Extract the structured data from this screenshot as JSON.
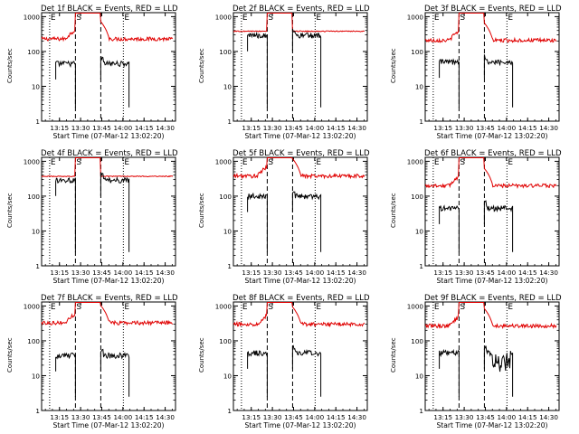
{
  "figure": {
    "title_suffix": "BLACK = Events, RED = LLD",
    "xlabel": "Start Time (07-Mar-12 13:02:20)",
    "ylabel": "Counts/sec",
    "x_tick_labels": [
      "13:15",
      "13:30",
      "13:45",
      "14:00",
      "14:15",
      "14:30"
    ],
    "y_tick_labels": [
      "1",
      "10",
      "100",
      "1000"
    ],
    "marker_labels": [
      "E",
      "S",
      "E"
    ],
    "colors": {
      "events": "#000000",
      "lld": "#e00000",
      "axes": "#000000"
    }
  },
  "chart_data": [
    {
      "type": "line",
      "title": "Det 1f BLACK = Events, RED = LLD",
      "x_unit": "minutes after 13:02:20",
      "ylog": true,
      "ylim": [
        1,
        1300
      ],
      "xlim": [
        0,
        95
      ],
      "xlabel": "Start Time (07-Mar-12 13:02:20)",
      "ylabel": "Counts/sec",
      "markers": [
        {
          "x": 5.7,
          "label": "E",
          "style": "dotted"
        },
        {
          "x": 24,
          "label": "S",
          "style": "dashed"
        },
        {
          "x": 42,
          "label": "",
          "style": "dashed"
        },
        {
          "x": 58,
          "label": "E",
          "style": "dotted"
        }
      ],
      "lld_base": 230,
      "event_base": 45,
      "event_bursts": [],
      "series": [
        {
          "name": "Events",
          "color": "#000000",
          "segments": [
            [
              10,
              24
            ],
            [
              42,
              62
            ]
          ]
        },
        {
          "name": "LLD",
          "color": "#e00000",
          "segments": [
            [
              0,
              93
            ]
          ]
        }
      ]
    },
    {
      "type": "line",
      "title": "Det 2f BLACK = Events, RED = LLD",
      "x_unit": "minutes after 13:02:20",
      "ylog": true,
      "ylim": [
        1,
        1300
      ],
      "xlim": [
        0,
        95
      ],
      "xlabel": "Start Time (07-Mar-12 13:02:20)",
      "ylabel": "Counts/sec",
      "markers": [
        {
          "x": 5.7,
          "label": "E",
          "style": "dotted"
        },
        {
          "x": 24,
          "label": "S",
          "style": "dashed"
        },
        {
          "x": 42,
          "label": "",
          "style": "dashed"
        },
        {
          "x": 58,
          "label": "E",
          "style": "dotted"
        }
      ],
      "lld_base": 380,
      "event_base": 290,
      "event_bursts": [],
      "series": [
        {
          "name": "Events",
          "color": "#000000",
          "segments": [
            [
              10,
              24
            ],
            [
              42,
              62
            ]
          ]
        },
        {
          "name": "LLD",
          "color": "#e00000",
          "segments": [
            [
              0,
              93
            ]
          ]
        }
      ]
    },
    {
      "type": "line",
      "title": "Det 3f BLACK = Events, RED = LLD",
      "x_unit": "minutes after 13:02:20",
      "ylog": true,
      "ylim": [
        1,
        1300
      ],
      "xlim": [
        0,
        95
      ],
      "xlabel": "Start Time (07-Mar-12 13:02:20)",
      "ylabel": "Counts/sec",
      "markers": [
        {
          "x": 5.7,
          "label": "E",
          "style": "dotted"
        },
        {
          "x": 24,
          "label": "S",
          "style": "dashed"
        },
        {
          "x": 42,
          "label": "",
          "style": "dashed"
        },
        {
          "x": 58,
          "label": "E",
          "style": "dotted"
        }
      ],
      "lld_base": 210,
      "event_base": 50,
      "event_bursts": [],
      "series": [
        {
          "name": "Events",
          "color": "#000000",
          "segments": [
            [
              10,
              24
            ],
            [
              42,
              62
            ]
          ]
        },
        {
          "name": "LLD",
          "color": "#e00000",
          "segments": [
            [
              0,
              93
            ]
          ]
        }
      ]
    },
    {
      "type": "line",
      "title": "Det 4f BLACK = Events, RED = LLD",
      "x_unit": "minutes after 13:02:20",
      "ylog": true,
      "ylim": [
        1,
        1300
      ],
      "xlim": [
        0,
        95
      ],
      "xlabel": "Start Time (07-Mar-12 13:02:20)",
      "ylabel": "Counts/sec",
      "markers": [
        {
          "x": 5.7,
          "label": "E",
          "style": "dotted"
        },
        {
          "x": 24,
          "label": "S",
          "style": "dashed"
        },
        {
          "x": 42,
          "label": "",
          "style": "dashed"
        },
        {
          "x": 58,
          "label": "E",
          "style": "dotted"
        }
      ],
      "lld_base": 370,
      "event_base": 290,
      "event_bursts": [],
      "series": [
        {
          "name": "Events",
          "color": "#000000",
          "segments": [
            [
              10,
              24
            ],
            [
              42,
              62
            ]
          ]
        },
        {
          "name": "LLD",
          "color": "#e00000",
          "segments": [
            [
              0,
              93
            ]
          ]
        }
      ]
    },
    {
      "type": "line",
      "title": "Det 5f BLACK = Events, RED = LLD",
      "x_unit": "minutes after 13:02:20",
      "ylog": true,
      "ylim": [
        1,
        1300
      ],
      "xlim": [
        0,
        95
      ],
      "xlabel": "Start Time (07-Mar-12 13:02:20)",
      "ylabel": "Counts/sec",
      "markers": [
        {
          "x": 5.7,
          "label": "E",
          "style": "dotted"
        },
        {
          "x": 24,
          "label": "S",
          "style": "dashed"
        },
        {
          "x": 42,
          "label": "",
          "style": "dashed"
        },
        {
          "x": 58,
          "label": "E",
          "style": "dotted"
        }
      ],
      "lld_base": 380,
      "event_base": 100,
      "event_bursts": [],
      "series": [
        {
          "name": "Events",
          "color": "#000000",
          "segments": [
            [
              10,
              24
            ],
            [
              42,
              62
            ]
          ]
        },
        {
          "name": "LLD",
          "color": "#e00000",
          "segments": [
            [
              0,
              93
            ]
          ]
        }
      ]
    },
    {
      "type": "line",
      "title": "Det 6f BLACK = Events, RED = LLD",
      "x_unit": "minutes after 13:02:20",
      "ylog": true,
      "ylim": [
        1,
        1300
      ],
      "xlim": [
        0,
        95
      ],
      "xlabel": "Start Time (07-Mar-12 13:02:20)",
      "ylabel": "Counts/sec",
      "markers": [
        {
          "x": 5.7,
          "label": "E",
          "style": "dotted"
        },
        {
          "x": 24,
          "label": "S",
          "style": "dashed"
        },
        {
          "x": 42,
          "label": "",
          "style": "dashed"
        },
        {
          "x": 58,
          "label": "E",
          "style": "dotted"
        }
      ],
      "lld_base": 200,
      "event_base": 45,
      "event_bursts": [],
      "series": [
        {
          "name": "Events",
          "color": "#000000",
          "segments": [
            [
              10,
              24
            ],
            [
              42,
              62
            ]
          ]
        },
        {
          "name": "LLD",
          "color": "#e00000",
          "segments": [
            [
              0,
              93
            ]
          ]
        }
      ]
    },
    {
      "type": "line",
      "title": "Det 7f BLACK = Events, RED = LLD",
      "x_unit": "minutes after 13:02:20",
      "ylog": true,
      "ylim": [
        1,
        1300
      ],
      "xlim": [
        0,
        95
      ],
      "xlabel": "Start Time (07-Mar-12 13:02:20)",
      "ylabel": "Counts/sec",
      "markers": [
        {
          "x": 5.7,
          "label": "E",
          "style": "dotted"
        },
        {
          "x": 24,
          "label": "S",
          "style": "dashed"
        },
        {
          "x": 42,
          "label": "",
          "style": "dashed"
        },
        {
          "x": 58,
          "label": "E",
          "style": "dotted"
        }
      ],
      "lld_base": 330,
      "event_base": 38,
      "event_bursts": [],
      "series": [
        {
          "name": "Events",
          "color": "#000000",
          "segments": [
            [
              10,
              24
            ],
            [
              42,
              62
            ]
          ]
        },
        {
          "name": "LLD",
          "color": "#e00000",
          "segments": [
            [
              0,
              93
            ]
          ]
        }
      ]
    },
    {
      "type": "line",
      "title": "Det 8f BLACK = Events, RED = LLD",
      "x_unit": "minutes after 13:02:20",
      "ylog": true,
      "ylim": [
        1,
        1300
      ],
      "xlim": [
        0,
        95
      ],
      "xlabel": "Start Time (07-Mar-12 13:02:20)",
      "ylabel": "Counts/sec",
      "markers": [
        {
          "x": 5.7,
          "label": "E",
          "style": "dotted"
        },
        {
          "x": 24,
          "label": "S",
          "style": "dashed"
        },
        {
          "x": 42,
          "label": "",
          "style": "dashed"
        },
        {
          "x": 58,
          "label": "E",
          "style": "dotted"
        }
      ],
      "lld_base": 300,
      "event_base": 45,
      "event_bursts": [],
      "series": [
        {
          "name": "Events",
          "color": "#000000",
          "segments": [
            [
              10,
              24
            ],
            [
              42,
              62
            ]
          ]
        },
        {
          "name": "LLD",
          "color": "#e00000",
          "segments": [
            [
              0,
              93
            ]
          ]
        }
      ]
    },
    {
      "type": "line",
      "title": "Det 9f BLACK = Events, RED = LLD",
      "x_unit": "minutes after 13:02:20",
      "ylog": true,
      "ylim": [
        1,
        1300
      ],
      "xlim": [
        0,
        95
      ],
      "xlabel": "Start Time (07-Mar-12 13:02:20)",
      "ylabel": "Counts/sec",
      "markers": [
        {
          "x": 5.7,
          "label": "E",
          "style": "dotted"
        },
        {
          "x": 24,
          "label": "S",
          "style": "dashed"
        },
        {
          "x": 42,
          "label": "",
          "style": "dashed"
        },
        {
          "x": 58,
          "label": "E",
          "style": "dotted"
        }
      ],
      "lld_base": 270,
      "event_base": 45,
      "event_bursts": [
        [
          48,
          53
        ],
        [
          53,
          60
        ]
      ],
      "series": [
        {
          "name": "Events",
          "color": "#000000",
          "segments": [
            [
              10,
              24
            ],
            [
              42,
              62
            ]
          ]
        },
        {
          "name": "LLD",
          "color": "#e00000",
          "segments": [
            [
              0,
              93
            ]
          ]
        }
      ]
    }
  ]
}
